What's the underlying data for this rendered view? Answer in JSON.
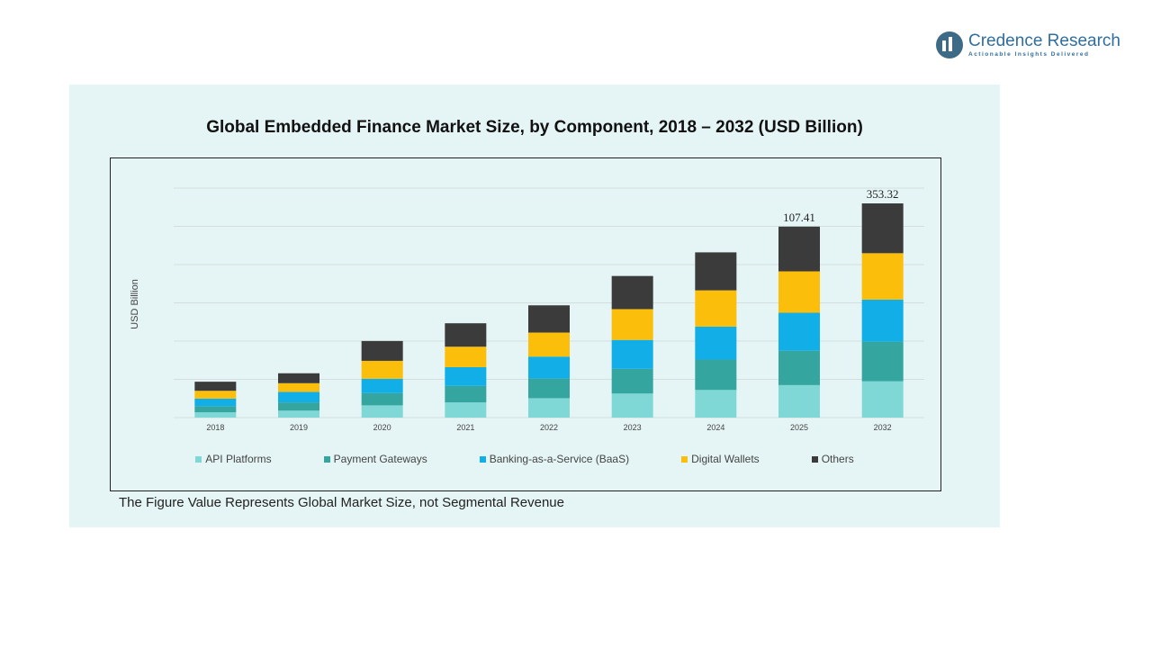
{
  "brand": {
    "name": "Credence Research",
    "tagline": "Actionable Insights Delivered"
  },
  "footnote": "The Figure Value Represents Global Market Size, not Segmental Revenue",
  "chart_data": {
    "type": "bar",
    "stacked": true,
    "title": "Global Embedded Finance Market Size, by Component, 2018 – 2032 (USD Billion)",
    "xlabel": "",
    "ylabel": "USD Billion",
    "categories": [
      "2018",
      "2019",
      "2020",
      "2021",
      "2022",
      "2023",
      "2024",
      "2025",
      "2032"
    ],
    "series": [
      {
        "name": "API Platforms",
        "color": "#7fd8d6",
        "values": [
          2.5,
          3.3,
          5.8,
          7.2,
          9.2,
          11.4,
          13.1,
          15.4,
          17.2
        ]
      },
      {
        "name": "Payment Gateways",
        "color": "#35a5a0",
        "values": [
          2.9,
          3.9,
          5.8,
          7.8,
          9.3,
          11.7,
          14.4,
          16.3,
          18.8
        ]
      },
      {
        "name": "Banking-as-a-Service (BaaS)",
        "color": "#11aee8",
        "values": [
          3.6,
          5.0,
          6.8,
          8.9,
          10.4,
          13.7,
          15.6,
          18.0,
          19.9
        ]
      },
      {
        "name": "Digital Wallets",
        "color": "#fbbe0a",
        "values": [
          3.7,
          4.1,
          8.5,
          9.7,
          11.4,
          14.6,
          17.2,
          19.6,
          22.0
        ]
      },
      {
        "name": "Others",
        "color": "#3b3b3b",
        "values": [
          4.3,
          4.7,
          9.4,
          11.1,
          12.9,
          15.7,
          18.0,
          21.2,
          23.6
        ]
      }
    ],
    "data_labels": [
      {
        "category": "2025",
        "text": "107.41"
      },
      {
        "category": "2032",
        "text": "353.32"
      }
    ],
    "grid": true,
    "legend_position": "bottom"
  }
}
